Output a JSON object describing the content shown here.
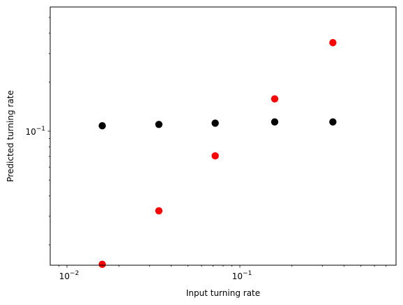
{
  "chart_data": {
    "type": "scatter",
    "title": "",
    "xlabel": "Input turning rate",
    "ylabel": "Predicted turning rate",
    "xscale": "log",
    "yscale": "log",
    "xlim": [
      0.008,
      0.8
    ],
    "ylim": [
      0.015,
      0.58
    ],
    "grid": false,
    "legend": "none",
    "x_ticks": [
      {
        "value": 0.01,
        "base": "10",
        "exp": "−2"
      },
      {
        "value": 0.1,
        "base": "10",
        "exp": "−1"
      }
    ],
    "y_ticks": [
      {
        "value": 0.1,
        "base": "10",
        "exp": "−1"
      }
    ],
    "series": [
      {
        "color": "#ff0000",
        "points": [
          {
            "x": 0.016,
            "y": 0.0152
          },
          {
            "x": 0.034,
            "y": 0.0324
          },
          {
            "x": 0.072,
            "y": 0.0705
          },
          {
            "x": 0.159,
            "y": 0.158
          },
          {
            "x": 0.345,
            "y": 0.35
          }
        ]
      },
      {
        "color": "#000000",
        "points": [
          {
            "x": 0.016,
            "y": 0.108
          },
          {
            "x": 0.034,
            "y": 0.11
          },
          {
            "x": 0.072,
            "y": 0.112
          },
          {
            "x": 0.159,
            "y": 0.114
          },
          {
            "x": 0.345,
            "y": 0.114
          }
        ]
      }
    ]
  }
}
